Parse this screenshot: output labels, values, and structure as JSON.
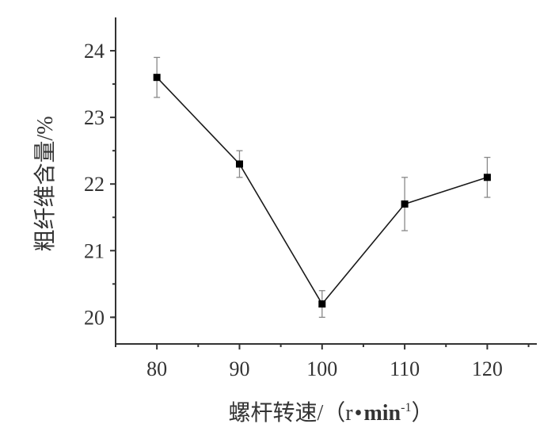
{
  "chart_data": {
    "type": "line",
    "x": [
      80,
      90,
      100,
      110,
      120
    ],
    "series": [
      {
        "values": [
          23.6,
          22.3,
          20.2,
          21.7,
          22.1
        ],
        "error": [
          0.3,
          0.2,
          0.2,
          0.4,
          0.3
        ]
      }
    ],
    "xlabel_main": "螺杆转速/（r",
    "xlabel_bullet": "•",
    "xlabel_unit": "min",
    "xlabel_sup": "-1",
    "xlabel_close": "）",
    "ylabel": "粗纤维含量/%",
    "xticks": [
      "80",
      "90",
      "100",
      "110",
      "120"
    ],
    "yticks": [
      "20",
      "21",
      "22",
      "23",
      "24"
    ],
    "xlim": [
      75,
      126
    ],
    "ylim": [
      19.6,
      24.5
    ],
    "grid": false,
    "marker": "square",
    "colors": {
      "line": "#1a1a1a",
      "marker": "#000000",
      "error_bar": "#888888",
      "axis": "#333333"
    }
  }
}
